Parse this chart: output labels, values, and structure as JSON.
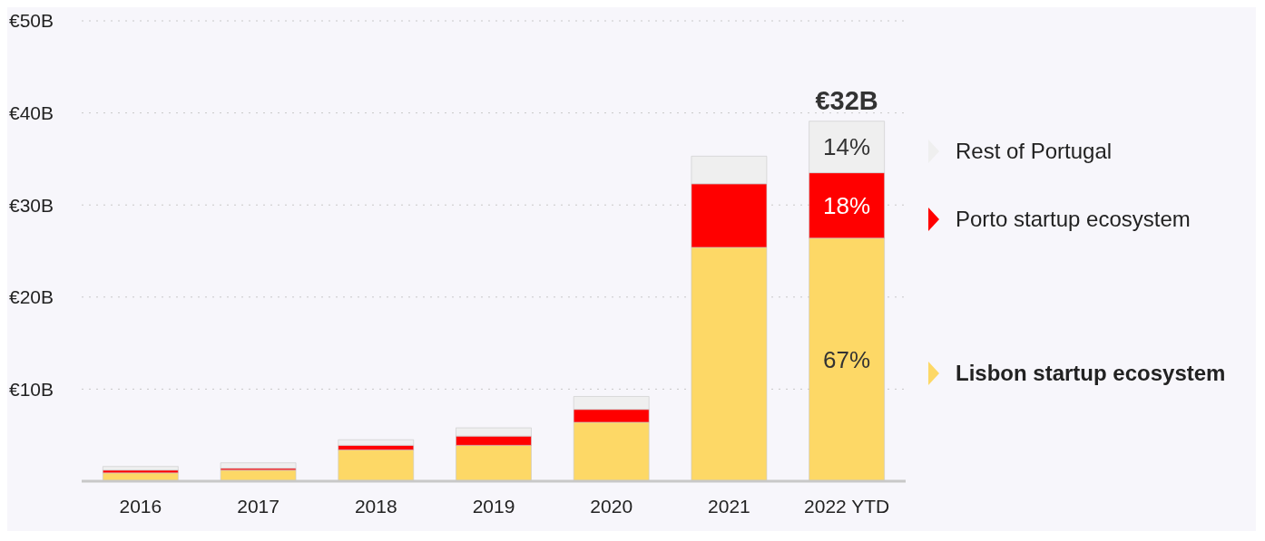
{
  "chart_data": {
    "type": "bar",
    "stacked": true,
    "categories": [
      "2016",
      "2017",
      "2018",
      "2019",
      "2020",
      "2021",
      "2022 YTD"
    ],
    "series": [
      {
        "name": "Lisbon startup ecosystem",
        "color": "#fdd866",
        "values": [
          0.9,
          1.2,
          3.4,
          3.9,
          6.4,
          25.4,
          26.4
        ]
      },
      {
        "name": "Porto startup ecosystem",
        "color": "#ff0000",
        "values": [
          0.3,
          0.2,
          0.5,
          1.0,
          1.4,
          6.9,
          7.1
        ]
      },
      {
        "name": "Rest of Portugal",
        "color": "#efefef",
        "values": [
          0.4,
          0.6,
          0.6,
          0.9,
          1.4,
          3.0,
          5.6
        ]
      }
    ],
    "annotations": [
      "67%",
      "18%",
      "14%",
      {
        "text": "€32B",
        "x": "2022 YTD",
        "y": 39.4
      }
    ],
    "ylim": [
      0,
      50
    ],
    "yticks": [
      {
        "value": 10,
        "label": "€10B"
      },
      {
        "value": 20,
        "label": "€20B"
      },
      {
        "value": 30,
        "label": "€30B"
      },
      {
        "value": 40,
        "label": "€40B"
      },
      {
        "value": 50,
        "label": "€50B"
      }
    ],
    "grid": "y",
    "legend": "right"
  }
}
